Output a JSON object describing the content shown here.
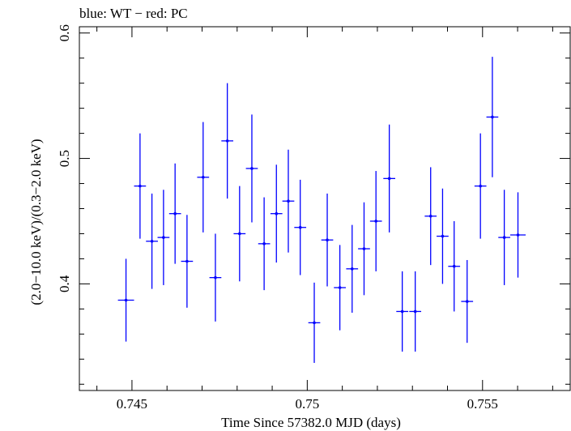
{
  "chart_data": {
    "type": "scatter",
    "title": "blue: WT − red: PC",
    "xlabel": "Time Since 57382.0 MJD (days)",
    "ylabel": "(2.0−10.0 keV)/(0.3−2.0 keV)",
    "xlim": [
      0.7435,
      0.7575
    ],
    "ylim": [
      0.315,
      0.605
    ],
    "x_ticks": [
      0.745,
      0.75,
      0.755
    ],
    "x_tick_labels": [
      "0.745",
      "0.75",
      "0.755"
    ],
    "y_ticks": [
      0.4,
      0.5,
      0.6
    ],
    "y_tick_labels": [
      "0.4",
      "0.5",
      "0.6"
    ],
    "grid": false,
    "series": [
      {
        "color": "#0000ff",
        "points": [
          {
            "x": 0.74483,
            "xerr": 0.00023,
            "y": 0.387,
            "yerr": 0.033
          },
          {
            "x": 0.74523,
            "xerr": 0.00017,
            "y": 0.478,
            "yerr": 0.042
          },
          {
            "x": 0.74557,
            "xerr": 0.00017,
            "y": 0.434,
            "yerr": 0.038
          },
          {
            "x": 0.7459,
            "xerr": 0.00017,
            "y": 0.437,
            "yerr": 0.038
          },
          {
            "x": 0.74623,
            "xerr": 0.00017,
            "y": 0.456,
            "yerr": 0.04
          },
          {
            "x": 0.74657,
            "xerr": 0.00017,
            "y": 0.418,
            "yerr": 0.037
          },
          {
            "x": 0.74703,
            "xerr": 0.00017,
            "y": 0.485,
            "yerr": 0.044
          },
          {
            "x": 0.74738,
            "xerr": 0.00017,
            "y": 0.405,
            "yerr": 0.035
          },
          {
            "x": 0.74772,
            "xerr": 0.00017,
            "y": 0.514,
            "yerr": 0.046
          },
          {
            "x": 0.74807,
            "xerr": 0.00017,
            "y": 0.44,
            "yerr": 0.038
          },
          {
            "x": 0.74842,
            "xerr": 0.00017,
            "y": 0.492,
            "yerr": 0.043
          },
          {
            "x": 0.74877,
            "xerr": 0.00017,
            "y": 0.432,
            "yerr": 0.037
          },
          {
            "x": 0.74912,
            "xerr": 0.00017,
            "y": 0.456,
            "yerr": 0.039
          },
          {
            "x": 0.74946,
            "xerr": 0.00017,
            "y": 0.466,
            "yerr": 0.041
          },
          {
            "x": 0.7498,
            "xerr": 0.00017,
            "y": 0.445,
            "yerr": 0.038
          },
          {
            "x": 0.7502,
            "xerr": 0.00017,
            "y": 0.369,
            "yerr": 0.032
          },
          {
            "x": 0.75057,
            "xerr": 0.00017,
            "y": 0.435,
            "yerr": 0.037
          },
          {
            "x": 0.75093,
            "xerr": 0.00017,
            "y": 0.397,
            "yerr": 0.034
          },
          {
            "x": 0.75128,
            "xerr": 0.00017,
            "y": 0.412,
            "yerr": 0.035
          },
          {
            "x": 0.75162,
            "xerr": 0.00017,
            "y": 0.428,
            "yerr": 0.037
          },
          {
            "x": 0.75196,
            "xerr": 0.00017,
            "y": 0.45,
            "yerr": 0.04
          },
          {
            "x": 0.75234,
            "xerr": 0.00017,
            "y": 0.484,
            "yerr": 0.043
          },
          {
            "x": 0.75271,
            "xerr": 0.00017,
            "y": 0.378,
            "yerr": 0.032
          },
          {
            "x": 0.75308,
            "xerr": 0.00017,
            "y": 0.378,
            "yerr": 0.032
          },
          {
            "x": 0.75352,
            "xerr": 0.00017,
            "y": 0.454,
            "yerr": 0.039
          },
          {
            "x": 0.75386,
            "xerr": 0.00017,
            "y": 0.438,
            "yerr": 0.038
          },
          {
            "x": 0.75419,
            "xerr": 0.00017,
            "y": 0.414,
            "yerr": 0.036
          },
          {
            "x": 0.75456,
            "xerr": 0.00017,
            "y": 0.386,
            "yerr": 0.033
          },
          {
            "x": 0.75494,
            "xerr": 0.00017,
            "y": 0.478,
            "yerr": 0.042
          },
          {
            "x": 0.75528,
            "xerr": 0.00017,
            "y": 0.533,
            "yerr": 0.048
          },
          {
            "x": 0.75562,
            "xerr": 0.00017,
            "y": 0.437,
            "yerr": 0.038
          },
          {
            "x": 0.75601,
            "xerr": 0.00022,
            "y": 0.439,
            "yerr": 0.034
          }
        ]
      }
    ]
  }
}
